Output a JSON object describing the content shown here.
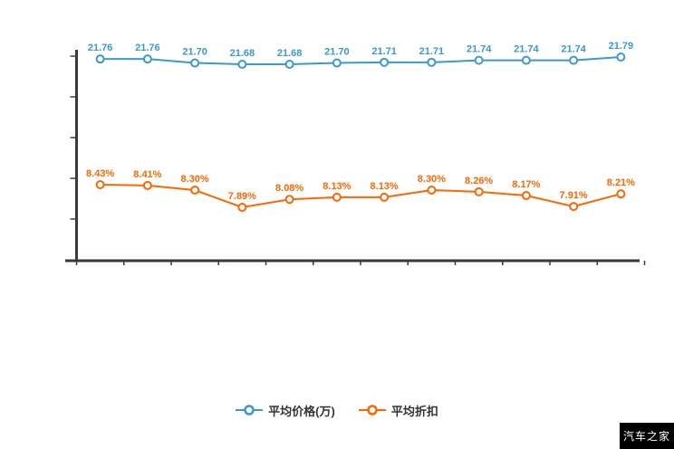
{
  "chart_data": {
    "type": "line",
    "title": "",
    "xlabel": "",
    "ylabel": "",
    "grid": "off",
    "legend_position": "bottom",
    "axis_color": "#3a3a3a",
    "x_tick_count": 12,
    "series": [
      {
        "name": "平均价格(万)",
        "color": "#3b99cf",
        "values": [
          21.76,
          21.76,
          21.7,
          21.68,
          21.68,
          21.7,
          21.71,
          21.71,
          21.74,
          21.74,
          21.74,
          21.79
        ],
        "labels": [
          "21.76",
          "21.76",
          "21.70",
          "21.68",
          "21.68",
          "21.70",
          "21.71",
          "21.71",
          "21.74",
          "21.74",
          "21.74",
          "21.79"
        ]
      },
      {
        "name": "平均折扣",
        "color": "#ff6600",
        "values": [
          8.43,
          8.41,
          8.3,
          7.89,
          8.08,
          8.13,
          8.13,
          8.3,
          8.26,
          8.17,
          7.91,
          8.21
        ],
        "labels": [
          "8.43%",
          "8.41%",
          "8.30%",
          "7.89%",
          "8.08%",
          "8.13%",
          "8.13%",
          "8.30%",
          "8.26%",
          "8.17%",
          "7.91%",
          "8.21%"
        ]
      }
    ]
  },
  "legend": {
    "items": [
      {
        "label": "平均价格(万)",
        "color": "#3b99cf"
      },
      {
        "label": "平均折扣",
        "color": "#ff6600"
      }
    ]
  },
  "watermark": {
    "text": "汽车之家",
    "bg": "#000000",
    "fg": "#ffffff"
  }
}
